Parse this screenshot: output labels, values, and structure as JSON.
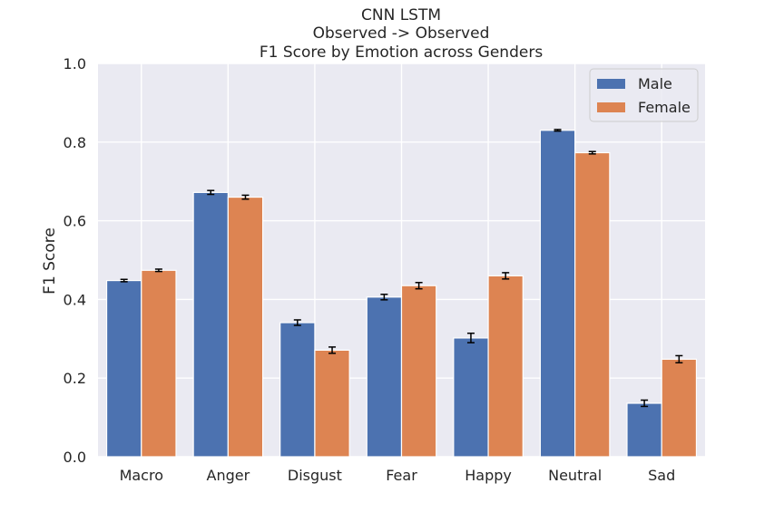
{
  "chart_data": {
    "type": "bar",
    "title_lines": [
      "CNN LSTM",
      "Observed -> Observed",
      "F1 Score by Emotion across Genders"
    ],
    "xlabel": "",
    "ylabel": "F1 Score",
    "ylim": [
      0,
      1.0
    ],
    "yticks": [
      "0.0",
      "0.2",
      "0.4",
      "0.6",
      "0.8",
      "1.0"
    ],
    "categories": [
      "Macro",
      "Anger",
      "Disgust",
      "Fear",
      "Happy",
      "Neutral",
      "Sad"
    ],
    "series": [
      {
        "name": "Male",
        "color": "#4c72b0",
        "values": [
          0.448,
          0.672,
          0.341,
          0.406,
          0.302,
          0.83,
          0.136
        ],
        "errors": [
          0.003,
          0.005,
          0.007,
          0.007,
          0.012,
          0.002,
          0.008
        ]
      },
      {
        "name": "Female",
        "color": "#dd8452",
        "values": [
          0.474,
          0.66,
          0.271,
          0.435,
          0.46,
          0.773,
          0.248
        ],
        "errors": [
          0.003,
          0.005,
          0.008,
          0.008,
          0.008,
          0.003,
          0.009
        ]
      }
    ],
    "legend_position": "top-right",
    "grid": true,
    "background_color": "#eaeaf2",
    "grid_color": "#ffffff"
  }
}
